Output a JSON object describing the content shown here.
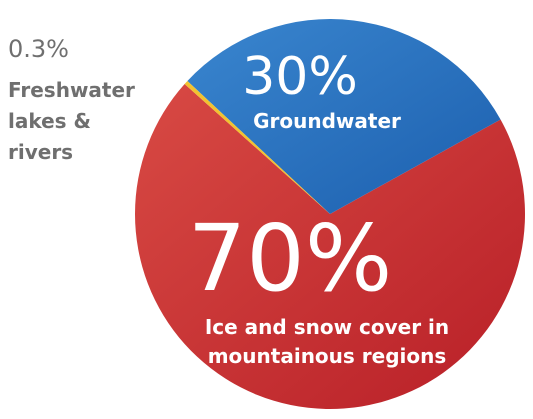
{
  "chart_data": {
    "type": "pie",
    "categories": [
      "Groundwater",
      "Ice and snow cover in mountainous regions",
      "Freshwater lakes & rivers"
    ],
    "values": [
      30,
      70,
      0.3
    ],
    "labels": {
      "groundwater": {
        "value": "30%",
        "text": "Groundwater"
      },
      "ice": {
        "value": "70%",
        "lines": [
          "Ice and snow cover in",
          "mountainous regions"
        ]
      },
      "fresh": {
        "value": "0.3%",
        "lines": [
          "Freshwater",
          "lakes &",
          "rivers"
        ]
      }
    },
    "colors": {
      "groundwater": [
        "#3a86cf",
        "#1c5fae"
      ],
      "ice": [
        "#d84a44",
        "#b81f27"
      ],
      "fresh": "#f2c230",
      "external_label": "#6f6f6f"
    }
  }
}
